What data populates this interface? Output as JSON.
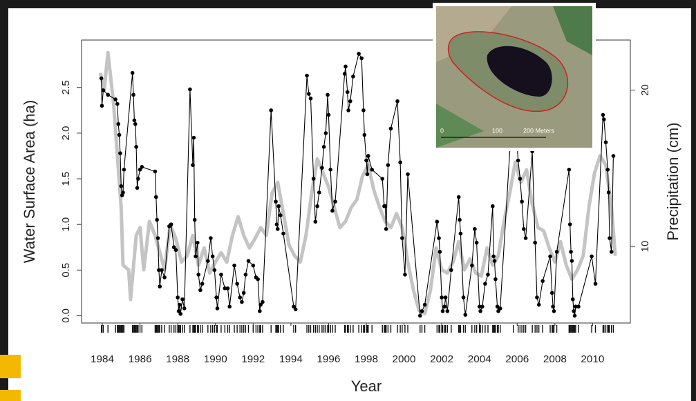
{
  "chart_data": {
    "type": "line",
    "xlabel": "Year",
    "ylabel": "Water Surface Area (ha)",
    "y2label": "Precipitation (cm)",
    "xlim": [
      1982.9,
      2012.0
    ],
    "xticks": [
      1984,
      1986,
      1988,
      1990,
      1992,
      1994,
      1996,
      1998,
      2000,
      2002,
      2004,
      2006,
      2008,
      2010
    ],
    "ylim": [
      -0.08,
      3.02
    ],
    "yticks": [
      {
        "value": 0,
        "label": "0.0"
      },
      0.5,
      {
        "value": 1,
        "label": "1.0"
      },
      1.5,
      {
        "value": 2,
        "label": "2.0"
      },
      2.5
    ],
    "y2lim": [
      5.1,
      23.2
    ],
    "y2ticks": [
      10,
      20
    ],
    "rug": true,
    "inset_labels": [
      "0",
      "100",
      "200 Meters"
    ],
    "series": [
      {
        "color": "#c4c4c4",
        "axis": "y2",
        "x": [
          1983.9,
          1984.1,
          1984.3,
          1984.6,
          1985.0,
          1985.1,
          1985.4,
          1985.5,
          1985.8,
          1986.0,
          1986.2,
          1986.5,
          1986.8,
          1987.1,
          1987.3,
          1987.6,
          1987.9,
          1988.2,
          1988.5,
          1988.8,
          1989.1,
          1989.4,
          1989.7,
          1990.0,
          1990.3,
          1990.6,
          1990.9,
          1991.2,
          1991.5,
          1991.8,
          1992.1,
          1992.4,
          1992.7,
          1993.0,
          1993.3,
          1993.6,
          1993.9,
          1994.2,
          1994.5,
          1994.8,
          1995.1,
          1995.4,
          1995.7,
          1996.0,
          1996.3,
          1996.6,
          1996.9,
          1997.2,
          1997.5,
          1997.8,
          1998.1,
          1998.4,
          1998.7,
          1999.0,
          1999.3,
          1999.6,
          1999.9,
          2000.2,
          2000.5,
          2000.8,
          2001.1,
          2001.4,
          2001.7,
          2002.0,
          2002.3,
          2002.6,
          2002.9,
          2003.2,
          2003.5,
          2003.8,
          2004.1,
          2004.4,
          2004.7,
          2005.0,
          2005.3,
          2005.6,
          2005.9,
          2006.2,
          2006.5,
          2006.8,
          2007.1,
          2007.4,
          2007.7,
          2008.0,
          2008.3,
          2008.6,
          2008.9,
          2009.2,
          2009.5,
          2009.8,
          2010.1,
          2010.4,
          2010.7,
          2011.0,
          2011.2
        ],
        "values": [
          21.1,
          20.0,
          22.4,
          19.1,
          12.5,
          8.8,
          8.5,
          6.6,
          10.7,
          11.2,
          8.5,
          11.6,
          10.7,
          9.4,
          8.5,
          11.4,
          10.5,
          9.0,
          9.4,
          10.7,
          8.8,
          9.9,
          8.3,
          9.0,
          9.6,
          9.0,
          10.7,
          11.9,
          10.7,
          9.9,
          10.5,
          11.2,
          10.7,
          13.4,
          14.1,
          12.1,
          10.1,
          9.4,
          9.0,
          10.7,
          13.4,
          15.6,
          14.7,
          13.8,
          12.5,
          11.2,
          11.6,
          12.5,
          13.0,
          14.5,
          15.2,
          13.6,
          12.5,
          11.6,
          11.2,
          12.1,
          11.2,
          9.0,
          7.2,
          5.9,
          5.7,
          7.2,
          9.9,
          8.5,
          8.3,
          9.0,
          10.3,
          8.5,
          9.2,
          8.3,
          8.1,
          9.9,
          8.8,
          9.4,
          11.6,
          13.4,
          15.4,
          14.1,
          14.9,
          12.7,
          11.2,
          11.0,
          9.9,
          9.0,
          10.3,
          8.8,
          7.9,
          8.5,
          9.4,
          12.5,
          14.7,
          15.8,
          15.2,
          12.5,
          9.4
        ]
      },
      {
        "color": "#000000",
        "axis": "y",
        "marker": "circle",
        "x": [
          1983.95,
          1983.98,
          1984.05,
          1984.3,
          1984.7,
          1984.8,
          1984.85,
          1984.9,
          1984.95,
          1985.0,
          1985.05,
          1985.1,
          1985.15,
          1985.6,
          1985.65,
          1985.7,
          1985.75,
          1985.8,
          1985.85,
          1985.9,
          1986.0,
          1986.1,
          1986.8,
          1986.85,
          1986.9,
          1986.95,
          1987.0,
          1987.05,
          1987.15,
          1987.3,
          1987.55,
          1987.65,
          1987.8,
          1987.9,
          1988.0,
          1988.05,
          1988.1,
          1988.15,
          1988.25,
          1988.35,
          1988.65,
          1988.8,
          1988.85,
          1988.9,
          1988.95,
          1989.05,
          1989.1,
          1989.2,
          1989.3,
          1989.6,
          1989.75,
          1989.85,
          1989.95,
          1990.05,
          1990.1,
          1990.3,
          1990.5,
          1990.65,
          1990.75,
          1991.0,
          1991.15,
          1991.3,
          1991.4,
          1991.5,
          1991.6,
          1991.75,
          1992.0,
          1992.15,
          1992.25,
          1992.35,
          1992.4,
          1992.5,
          1992.95,
          1993.2,
          1993.25,
          1993.3,
          1993.35,
          1993.45,
          1993.6,
          1994.15,
          1994.25,
          1994.85,
          1994.95,
          1995.05,
          1995.2,
          1995.3,
          1995.4,
          1995.5,
          1995.65,
          1995.75,
          1995.85,
          1995.95,
          1996.0,
          1996.1,
          1996.2,
          1996.35,
          1996.85,
          1996.9,
          1997.0,
          1997.05,
          1997.15,
          1997.3,
          1997.6,
          1997.75,
          1997.85,
          1997.9,
          1998.0,
          1998.05,
          1998.1,
          1998.3,
          1998.85,
          1998.95,
          1999.0,
          1999.05,
          1999.15,
          1999.3,
          1999.65,
          1999.8,
          1999.9,
          2000.05,
          2000.2,
          2000.85,
          2000.95,
          2001.1,
          2001.75,
          2001.85,
          2001.9,
          2002.0,
          2002.05,
          2002.15,
          2002.2,
          2002.3,
          2002.5,
          2002.9,
          2002.95,
          2003.0,
          2003.15,
          2003.25,
          2003.6,
          2003.75,
          2003.85,
          2004.0,
          2004.05,
          2004.15,
          2004.3,
          2004.45,
          2004.7,
          2004.75,
          2004.8,
          2004.85,
          2004.95,
          2005.0,
          2005.1,
          2005.8,
          2006.05,
          2006.15,
          2006.25,
          2006.35,
          2006.45,
          2006.8,
          2006.95,
          2007.05,
          2007.15,
          2007.35,
          2007.75,
          2007.85,
          2007.9,
          2007.95,
          2008.1,
          2008.75,
          2008.8,
          2008.85,
          2008.9,
          2008.95,
          2009.0,
          2009.05,
          2009.1,
          2009.25,
          2009.95,
          2010.15,
          2010.55,
          2010.6,
          2010.7,
          2010.8,
          2010.85,
          2010.9,
          2011.0,
          2011.1
        ],
        "values": [
          2.6,
          2.3,
          2.47,
          2.42,
          2.37,
          2.32,
          2.1,
          1.98,
          1.78,
          1.42,
          1.32,
          1.35,
          1.6,
          2.66,
          2.42,
          2.14,
          2.1,
          1.85,
          1.4,
          1.5,
          1.6,
          1.63,
          1.58,
          1.3,
          1.05,
          0.85,
          0.5,
          0.32,
          0.5,
          0.42,
          0.98,
          1.0,
          0.75,
          0.72,
          0.2,
          0.05,
          0.12,
          0.02,
          0.18,
          0.08,
          2.48,
          1.65,
          1.95,
          1.05,
          0.65,
          0.8,
          0.45,
          0.28,
          0.35,
          0.6,
          0.85,
          0.65,
          0.5,
          0.2,
          0.08,
          0.45,
          0.3,
          0.3,
          0.1,
          0.55,
          0.35,
          0.2,
          0.15,
          0.25,
          0.45,
          0.6,
          0.55,
          0.42,
          0.4,
          0.05,
          0.12,
          0.15,
          2.25,
          1.25,
          1.0,
          0.95,
          1.2,
          1.1,
          0.9,
          0.1,
          0.07,
          2.63,
          2.43,
          2.38,
          1.5,
          1.03,
          1.2,
          1.35,
          1.62,
          1.85,
          2.0,
          2.42,
          2.2,
          1.6,
          1.15,
          1.25,
          2.65,
          2.73,
          2.45,
          2.25,
          2.35,
          2.62,
          2.87,
          2.82,
          2.25,
          1.98,
          1.7,
          1.55,
          1.75,
          1.6,
          1.5,
          1.2,
          1.2,
          0.95,
          1.65,
          2.05,
          2.35,
          1.68,
          0.85,
          0.45,
          1.55,
          0.0,
          0.05,
          0.12,
          1.03,
          0.85,
          0.7,
          0.2,
          0.05,
          0.1,
          0.2,
          0.05,
          0.5,
          1.3,
          1.05,
          0.9,
          0.2,
          0.01,
          0.55,
          0.95,
          0.8,
          0.1,
          0.05,
          0.1,
          0.35,
          0.45,
          1.2,
          0.65,
          0.6,
          0.4,
          0.1,
          0.05,
          0.08,
          2.45,
          1.7,
          1.5,
          1.25,
          0.95,
          0.85,
          1.8,
          0.8,
          0.2,
          0.12,
          0.38,
          0.65,
          0.25,
          0.1,
          0.05,
          0.7,
          1.6,
          1.0,
          0.7,
          0.6,
          0.18,
          0.05,
          0.0,
          0.1,
          0.1,
          0.65,
          0.35,
          2.2,
          2.15,
          1.9,
          1.6,
          1.35,
          0.85,
          0.7,
          1.75
        ]
      }
    ]
  }
}
